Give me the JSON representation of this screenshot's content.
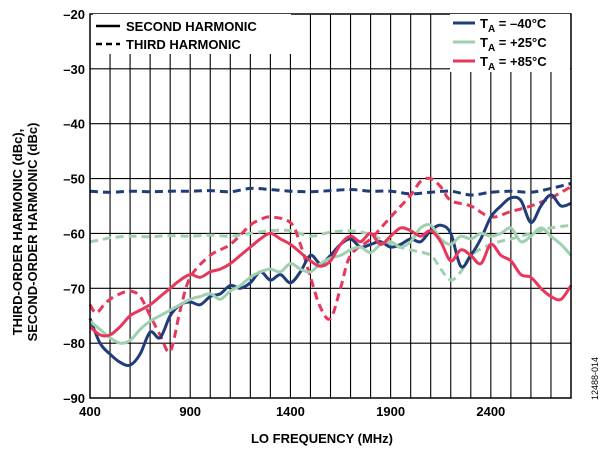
{
  "chart_data": {
    "type": "line",
    "xlabel": "LO FREQUENCY (MHz)",
    "ylabel_lines": [
      "THIRD-ORDER HARMONIC (dBc),",
      "SECOND-ORDER HARMONIC (dBc)"
    ],
    "xlim": [
      400,
      2800
    ],
    "ylim": [
      -90,
      -20
    ],
    "x_ticks": [
      400,
      900,
      1400,
      1900,
      2400
    ],
    "x_tick_labels": [
      "400",
      "900",
      "1400",
      "1900",
      "2400"
    ],
    "y_ticks": [
      -90,
      -80,
      -70,
      -60,
      -50,
      -40,
      -30,
      -20
    ],
    "y_tick_labels": [
      "–90",
      "–80",
      "–70",
      "–60",
      "–50",
      "–40",
      "–30",
      "–20"
    ],
    "grid": true,
    "figure_id": "12488-014",
    "style_legend": [
      {
        "label": "SECOND HARMONIC",
        "dash": "solid"
      },
      {
        "label": "THIRD HARMONIC",
        "dash": "dashed"
      }
    ],
    "temp_legend": [
      {
        "prefix": "T",
        "sub": "A",
        "suffix": " = –40°C",
        "color": "#1f3d7a"
      },
      {
        "prefix": "T",
        "sub": "A",
        "suffix": " = +25°C",
        "color": "#9fd0b0"
      },
      {
        "prefix": "T",
        "sub": "A",
        "suffix": " = +85°C",
        "color": "#e8375a"
      }
    ],
    "series": [
      {
        "harmonic": "third",
        "dash": "dashed",
        "color": "#1f3d7a",
        "x": [
          400,
          500,
          600,
          700,
          800,
          900,
          1000,
          1100,
          1200,
          1300,
          1400,
          1500,
          1600,
          1700,
          1800,
          1900,
          2000,
          2100,
          2200,
          2300,
          2400,
          2500,
          2600,
          2700,
          2800
        ],
        "y": [
          -52.3,
          -52.5,
          -52.3,
          -52.4,
          -52.3,
          -52.3,
          -52.2,
          -52.4,
          -51.8,
          -52.0,
          -52.3,
          -52.4,
          -52.2,
          -52.0,
          -52.3,
          -52.3,
          -52.8,
          -52.5,
          -52.3,
          -53.0,
          -52.5,
          -52.3,
          -52.5,
          -51.8,
          -50.9
        ]
      },
      {
        "harmonic": "third",
        "dash": "dashed",
        "color": "#9fd0b0",
        "x": [
          400,
          450,
          500,
          600,
          700,
          800,
          900,
          1000,
          1100,
          1200,
          1300,
          1400,
          1500,
          1600,
          1700,
          1800,
          1900,
          2000,
          2100,
          2150,
          2200,
          2250,
          2300,
          2400,
          2500,
          2600,
          2700,
          2800
        ],
        "y": [
          -61.5,
          -61.2,
          -60.8,
          -60.5,
          -60.6,
          -60.4,
          -60.5,
          -60.3,
          -60.5,
          -60.0,
          -59.5,
          -59.5,
          -60.5,
          -59.8,
          -59.5,
          -60.2,
          -62.0,
          -63.0,
          -64.0,
          -66.5,
          -68.5,
          -67.0,
          -64.0,
          -62.0,
          -61.0,
          -60.0,
          -59.0,
          -58.5
        ]
      },
      {
        "harmonic": "third",
        "dash": "dashed",
        "color": "#e8375a",
        "x": [
          400,
          430,
          470,
          500,
          550,
          600,
          650,
          700,
          750,
          800,
          850,
          900,
          1000,
          1100,
          1200,
          1250,
          1300,
          1400,
          1450,
          1500,
          1550,
          1600,
          1650,
          1700,
          1800,
          1900,
          2000,
          2050,
          2100,
          2150,
          2200,
          2300,
          2400,
          2500,
          2600,
          2700,
          2800
        ],
        "y": [
          -73.0,
          -74.5,
          -73.0,
          -72.0,
          -71.0,
          -70.5,
          -71.5,
          -75.0,
          -78.5,
          -81.5,
          -74.0,
          -68.0,
          -64.0,
          -62.0,
          -58.5,
          -57.5,
          -57.0,
          -58.0,
          -62.0,
          -68.0,
          -73.5,
          -75.5,
          -70.0,
          -64.0,
          -61.0,
          -57.0,
          -53.0,
          -50.5,
          -50.0,
          -51.5,
          -54.0,
          -55.0,
          -57.0,
          -56.0,
          -55.0,
          -53.5,
          -51.5
        ]
      },
      {
        "harmonic": "second",
        "dash": "solid",
        "color": "#1f3d7a",
        "x": [
          400,
          450,
          500,
          550,
          600,
          650,
          700,
          750,
          800,
          850,
          900,
          950,
          1000,
          1050,
          1100,
          1150,
          1200,
          1250,
          1300,
          1350,
          1400,
          1450,
          1500,
          1550,
          1600,
          1650,
          1700,
          1750,
          1800,
          1850,
          1900,
          1950,
          2000,
          2050,
          2100,
          2150,
          2200,
          2250,
          2300,
          2350,
          2400,
          2450,
          2500,
          2550,
          2600,
          2650,
          2700,
          2750,
          2800
        ],
        "y": [
          -75.5,
          -80.0,
          -82.0,
          -83.5,
          -84.0,
          -82.0,
          -78.0,
          -79.0,
          -75.0,
          -73.0,
          -72.5,
          -73.0,
          -71.5,
          -71.0,
          -69.5,
          -70.0,
          -69.0,
          -67.0,
          -68.5,
          -67.5,
          -69.0,
          -67.0,
          -64.0,
          -65.5,
          -64.0,
          -62.0,
          -61.0,
          -62.5,
          -62.0,
          -61.5,
          -62.5,
          -62.0,
          -61.0,
          -61.5,
          -59.5,
          -58.5,
          -60.0,
          -66.0,
          -64.0,
          -61.0,
          -57.0,
          -55.0,
          -53.5,
          -54.0,
          -58.0,
          -55.0,
          -53.0,
          -55.0,
          -54.5
        ]
      },
      {
        "harmonic": "second",
        "dash": "solid",
        "color": "#9fd0b0",
        "x": [
          400,
          450,
          500,
          550,
          600,
          650,
          700,
          750,
          800,
          850,
          900,
          950,
          1000,
          1050,
          1100,
          1150,
          1200,
          1250,
          1300,
          1350,
          1400,
          1450,
          1500,
          1550,
          1600,
          1650,
          1700,
          1750,
          1800,
          1850,
          1900,
          1950,
          2000,
          2050,
          2100,
          2150,
          2200,
          2250,
          2300,
          2350,
          2400,
          2450,
          2500,
          2550,
          2600,
          2650,
          2700,
          2750,
          2800
        ],
        "y": [
          -76.0,
          -77.5,
          -79.0,
          -80.0,
          -79.5,
          -77.5,
          -76.0,
          -75.0,
          -74.0,
          -73.0,
          -72.0,
          -71.5,
          -71.0,
          -72.0,
          -70.5,
          -69.5,
          -68.0,
          -67.0,
          -66.5,
          -67.0,
          -65.5,
          -66.5,
          -67.0,
          -65.5,
          -64.5,
          -64.0,
          -63.0,
          -62.5,
          -63.5,
          -62.0,
          -61.5,
          -62.5,
          -61.5,
          -59.0,
          -58.5,
          -61.0,
          -62.0,
          -60.5,
          -61.0,
          -60.0,
          -60.5,
          -60.0,
          -59.0,
          -61.5,
          -60.5,
          -59.0,
          -60.5,
          -62.0,
          -64.0
        ]
      },
      {
        "harmonic": "second",
        "dash": "solid",
        "color": "#e8375a",
        "x": [
          400,
          450,
          500,
          550,
          600,
          650,
          700,
          750,
          800,
          850,
          900,
          950,
          1000,
          1050,
          1100,
          1150,
          1200,
          1250,
          1300,
          1350,
          1400,
          1450,
          1500,
          1550,
          1600,
          1650,
          1700,
          1750,
          1800,
          1850,
          1900,
          1950,
          2000,
          2050,
          2100,
          2150,
          2200,
          2250,
          2300,
          2350,
          2400,
          2450,
          2500,
          2550,
          2600,
          2650,
          2700,
          2750,
          2800
        ],
        "y": [
          -77.0,
          -78.5,
          -78.5,
          -77.0,
          -75.0,
          -74.0,
          -73.0,
          -71.5,
          -70.0,
          -68.5,
          -67.5,
          -68.0,
          -67.0,
          -66.5,
          -65.5,
          -64.0,
          -62.5,
          -61.0,
          -60.0,
          -61.0,
          -62.0,
          -63.5,
          -65.0,
          -66.0,
          -65.0,
          -62.0,
          -60.5,
          -61.5,
          -60.0,
          -62.0,
          -60.5,
          -59.0,
          -59.5,
          -60.5,
          -59.5,
          -61.5,
          -65.0,
          -63.0,
          -64.0,
          -65.5,
          -62.0,
          -64.0,
          -65.0,
          -67.5,
          -68.0,
          -70.0,
          -71.5,
          -72.0,
          -69.5
        ]
      }
    ]
  }
}
